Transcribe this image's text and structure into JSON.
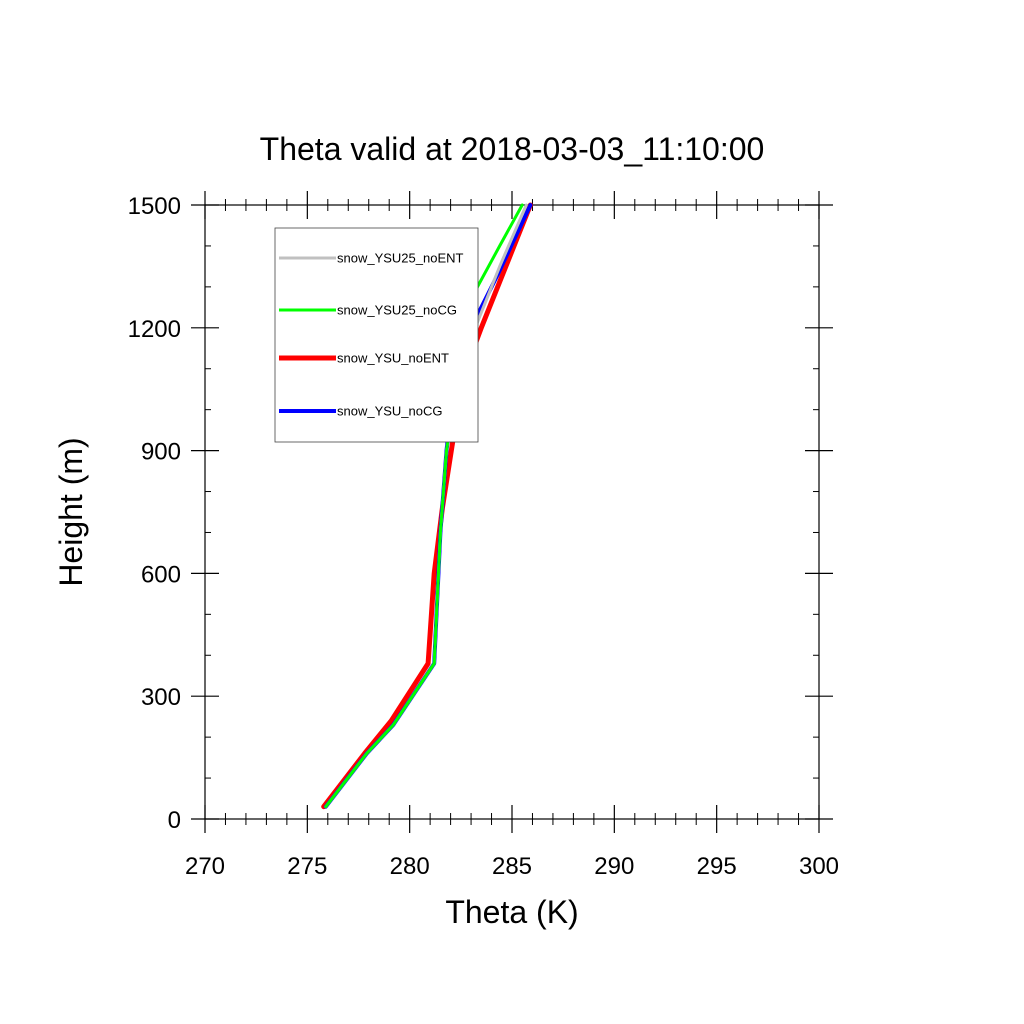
{
  "chart_data": {
    "type": "line",
    "title": "Theta valid at 2018-03-03_11:10:00",
    "xlabel": "Theta (K)",
    "ylabel": "Height (m)",
    "xlim": [
      270,
      300
    ],
    "ylim": [
      0,
      1500
    ],
    "xticks": [
      270,
      275,
      280,
      285,
      290,
      295,
      300
    ],
    "yticks": [
      0,
      300,
      600,
      900,
      1200,
      1500
    ],
    "grid": false,
    "legend_position": "upper-left inside plot",
    "series": [
      {
        "name": "snow_YSU25_noENT",
        "color": "#c0c0c0",
        "x": [
          275.9,
          277.9,
          279.2,
          281.2,
          281.5,
          281.8,
          282.3,
          283.2,
          284.4,
          285.7
        ],
        "y": [
          30,
          160,
          230,
          380,
          700,
          900,
          1080,
          1200,
          1350,
          1500
        ]
      },
      {
        "name": "snow_YSU25_noCG",
        "color": "#00ff00",
        "x": [
          275.9,
          277.9,
          279.2,
          281.2,
          281.5,
          281.8,
          282.6,
          283.2,
          284.4,
          285.5
        ],
        "y": [
          30,
          160,
          230,
          380,
          700,
          900,
          1180,
          1290,
          1400,
          1500
        ]
      },
      {
        "name": "snow_YSU_noENT",
        "color": "#ff0000",
        "x": [
          275.8,
          277.8,
          279.1,
          280.9,
          281.2,
          281.6,
          282.1,
          282.6,
          283.5,
          285.9
        ],
        "y": [
          30,
          160,
          240,
          380,
          600,
          760,
          920,
          1080,
          1200,
          1500
        ]
      },
      {
        "name": "snow_YSU_noCG",
        "color": "#0000ff",
        "x": [
          275.9,
          277.9,
          279.2,
          281.2,
          281.5,
          281.8,
          282.2,
          283.0,
          284.3,
          285.9
        ],
        "y": [
          30,
          160,
          230,
          380,
          700,
          900,
          1080,
          1200,
          1330,
          1500
        ]
      }
    ]
  }
}
